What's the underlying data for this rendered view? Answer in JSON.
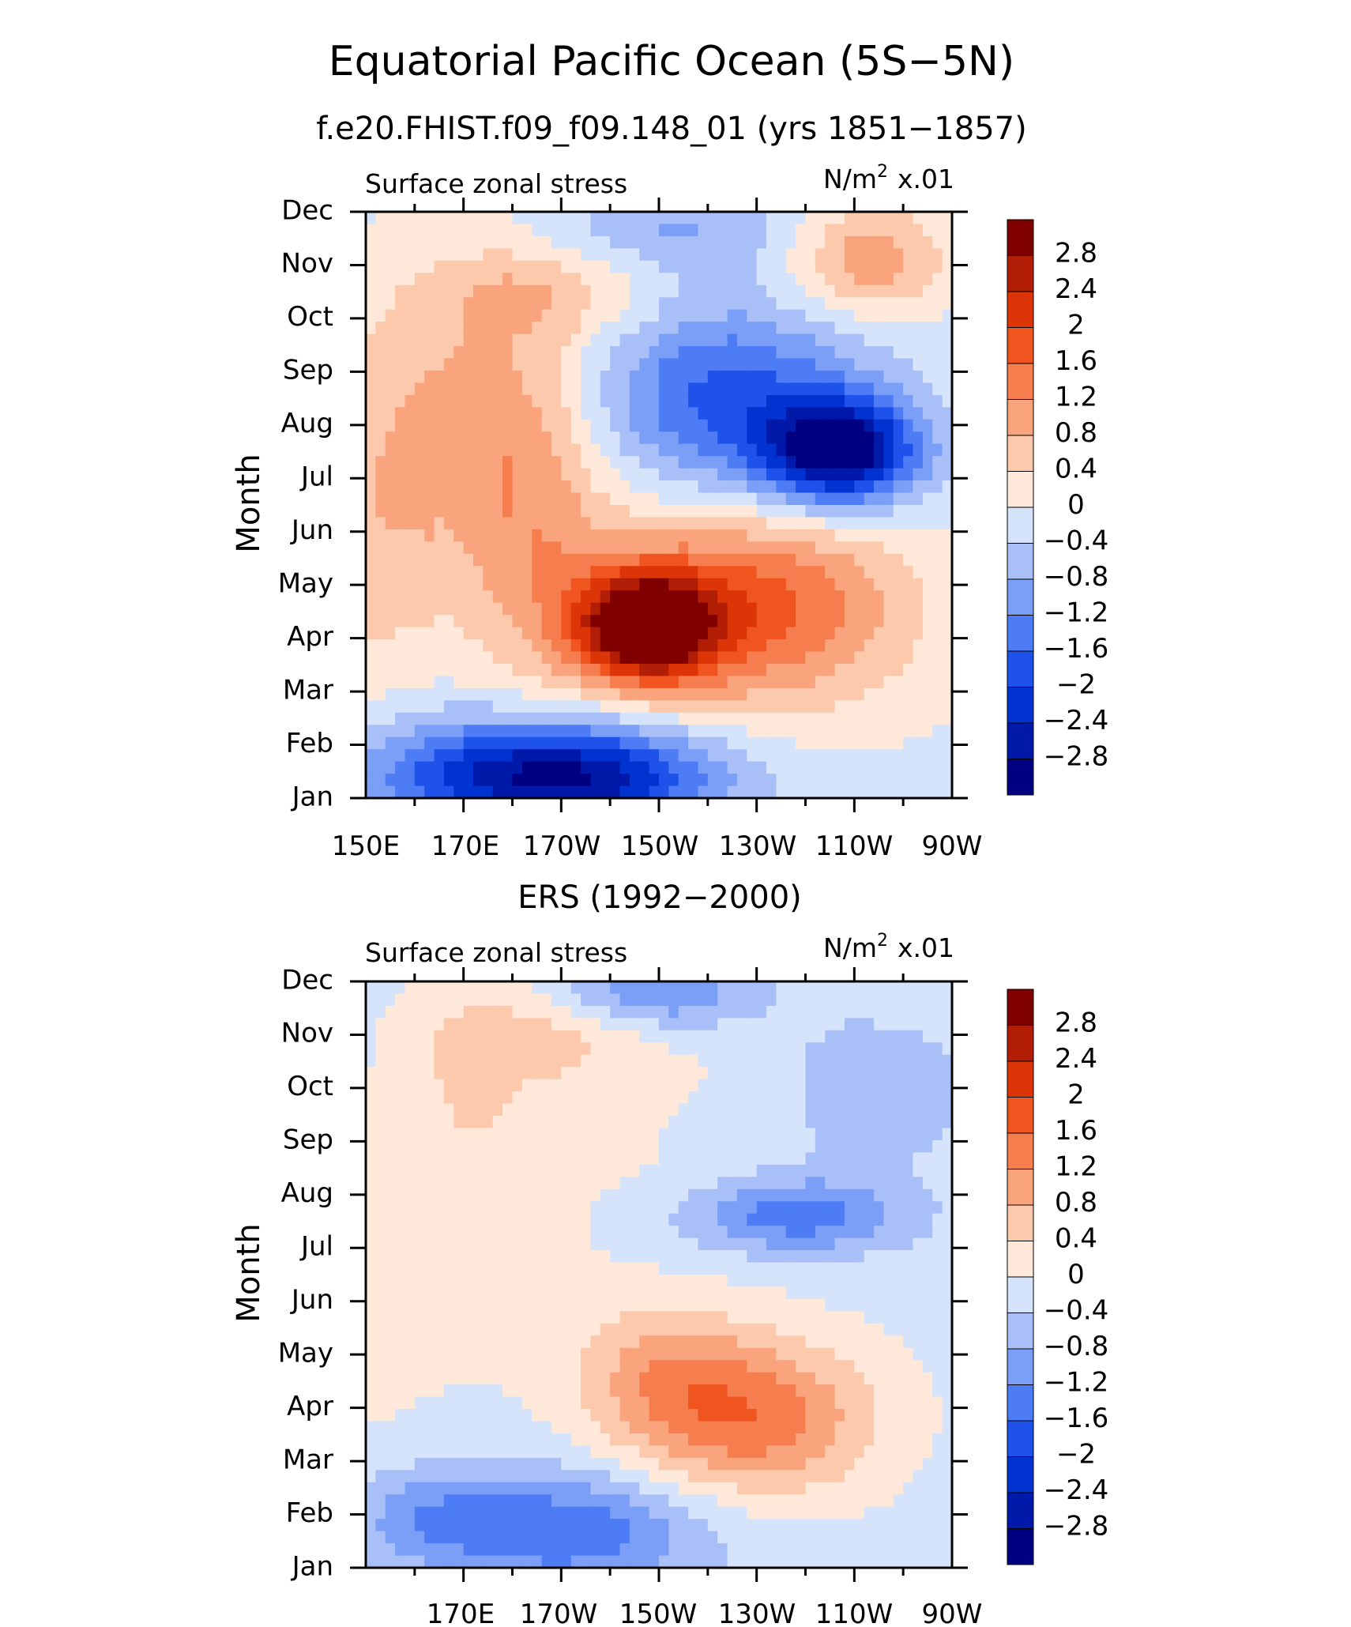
{
  "header": {
    "title": "Equatorial Pacific Ocean (5S−5N)"
  },
  "colors": {
    "levels": [
      -2.8,
      -2.4,
      -2.0,
      -1.6,
      -1.2,
      -0.8,
      -0.4,
      0,
      0.4,
      0.8,
      1.2,
      1.6,
      2.0,
      2.4,
      2.8
    ],
    "palette": [
      "#000080",
      "#0019a8",
      "#0033d0",
      "#1f52ea",
      "#4d7cf5",
      "#7b9ef7",
      "#a8bff7",
      "#d5e4fb",
      "#fde8da",
      "#fcc9ac",
      "#f9a47c",
      "#f67e4e",
      "#f05520",
      "#dc3508",
      "#b21e05",
      "#800000"
    ]
  },
  "chart_data": [
    {
      "type": "heatmap",
      "title": "f.e20.FHIST.f09_f09.148_01 (yrs 1851−1857)",
      "left_label": "Surface zonal stress",
      "right_label_base": "N/m",
      "right_label_sup": "2",
      "right_label_scale": "x.01",
      "xlabel": "",
      "ylabel": "Month",
      "x_range": [
        150,
        270
      ],
      "x_ticks": [
        150,
        170,
        190,
        210,
        230,
        250,
        270
      ],
      "x_tick_labels": [
        "150E",
        "170E",
        "170W",
        "150W",
        "130W",
        "110W",
        "90W"
      ],
      "months": [
        "Jan",
        "Feb",
        "Mar",
        "Apr",
        "May",
        "Jun",
        "Jul",
        "Aug",
        "Sep",
        "Oct",
        "Nov",
        "Dec"
      ],
      "colorbar_labels": [
        "2.8",
        "2.4",
        "2",
        "1.6",
        "1.2",
        "0.8",
        "0.4",
        "0",
        "−0.4",
        "−0.8",
        "−1.2",
        "−1.6",
        "−2",
        "−2.4",
        "−2.8"
      ],
      "field": {
        "bg": -0.1,
        "ridge": [
          0.8,
          0.7,
          0.6,
          0.5,
          0.4,
          0.3,
          0.2,
          0.1
        ],
        "blobs": [
          [
            207,
            3.2,
            14,
            1.0,
            3.2
          ],
          [
            228,
            3.6,
            32,
            1.9,
            1.9
          ],
          [
            185,
            5.0,
            14,
            3.0,
            0.7
          ],
          [
            172,
            8.0,
            28,
            2.5,
            0.5
          ],
          [
            192,
            0.4,
            30,
            1.0,
            -2.7
          ],
          [
            165,
            0.5,
            25,
            1.2,
            -0.7
          ],
          [
            247,
            6.5,
            16,
            1.0,
            -3.0
          ],
          [
            220,
            7.6,
            30,
            1.9,
            -1.9
          ],
          [
            215,
            10.7,
            28,
            0.9,
            -0.9
          ],
          [
            253,
            10.1,
            15,
            1.0,
            1.2
          ],
          [
            185,
            9.5,
            22,
            0.8,
            0.5
          ]
        ]
      }
    },
    {
      "type": "heatmap",
      "title": "ERS (1992−2000)",
      "left_label": "Surface zonal stress",
      "right_label_base": "N/m",
      "right_label_sup": "2",
      "right_label_scale": "x.01",
      "xlabel": "",
      "ylabel": "Month",
      "x_range": [
        150,
        270
      ],
      "x_ticks": [
        170,
        190,
        210,
        230,
        250,
        270
      ],
      "x_tick_labels": [
        "170E",
        "170W",
        "150W",
        "130W",
        "110W",
        "90W"
      ],
      "months": [
        "Jan",
        "Feb",
        "Mar",
        "Apr",
        "May",
        "Jun",
        "Jul",
        "Aug",
        "Sep",
        "Oct",
        "Nov",
        "Dec"
      ],
      "colorbar_labels": [
        "2.8",
        "2.4",
        "2",
        "1.6",
        "1.2",
        "0.8",
        "0.4",
        "0",
        "−0.4",
        "−0.8",
        "−1.2",
        "−1.6",
        "−2",
        "−2.4",
        "−2.8"
      ],
      "field": {
        "bg": -0.15,
        "ridge": [
          0.3,
          0.3,
          0.25,
          0.2,
          0.15,
          0.1,
          0.05,
          0.1
        ],
        "blobs": [
          [
            229,
            2.8,
            25,
            1.5,
            1.6
          ],
          [
            210,
            3.7,
            18,
            1.3,
            0.8
          ],
          [
            190,
            0.7,
            30,
            1.1,
            -1.4
          ],
          [
            162,
            1.0,
            15,
            0.9,
            -0.6
          ],
          [
            238,
            6.6,
            22,
            0.7,
            -1.3
          ],
          [
            255,
            9.0,
            20,
            1.5,
            -0.6
          ],
          [
            210,
            10.8,
            20,
            0.7,
            -1.2
          ],
          [
            187,
            10.0,
            22,
            0.9,
            0.6
          ],
          [
            170,
            9.0,
            15,
            2.0,
            0.4
          ]
        ]
      }
    }
  ]
}
